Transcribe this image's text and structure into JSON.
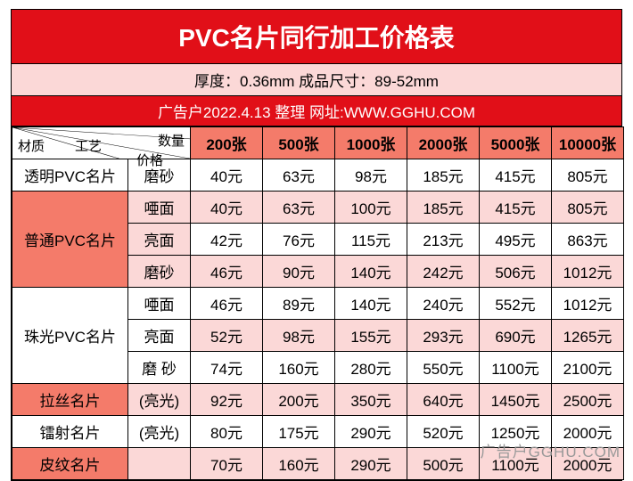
{
  "title": "PVC名片同行加工价格表",
  "spec": "厚度：0.36mm  成品尺寸：89-52mm",
  "info": "广告户2022.4.13 整理   网址:WWW.GGHU.COM",
  "diagLabels": {
    "qty": "数量",
    "price": "价格",
    "material": "材质",
    "tech": "工艺"
  },
  "qtyHeaders": [
    "200张",
    "500张",
    "1000张",
    "2000张",
    "5000张",
    "10000张"
  ],
  "rows": [
    {
      "material": "透明PVC名片",
      "matRowspan": 1,
      "matBg": "bg-white",
      "tech": "磨砂",
      "techBg": "bg-white",
      "valBg": "val-white",
      "values": [
        "40元",
        "63元",
        "98元",
        "185元",
        "415元",
        "805元"
      ]
    },
    {
      "material": "普通PVC名片",
      "matRowspan": 3,
      "matBg": "bg-dark",
      "tech": "唖面",
      "techBg": "bg-light",
      "valBg": "val-light",
      "values": [
        "40元",
        "63元",
        "100元",
        "185元",
        "415元",
        "805元"
      ]
    },
    {
      "material": "",
      "matRowspan": 0,
      "matBg": "",
      "tech": "亮面",
      "techBg": "bg-light",
      "valBg": "val-white",
      "values": [
        "42元",
        "76元",
        "115元",
        "213元",
        "495元",
        "863元"
      ]
    },
    {
      "material": "",
      "matRowspan": 0,
      "matBg": "",
      "tech": "磨砂",
      "techBg": "bg-light",
      "valBg": "val-light",
      "values": [
        "46元",
        "90元",
        "140元",
        "242元",
        "506元",
        "1012元"
      ]
    },
    {
      "material": "珠光PVC名片",
      "matRowspan": 3,
      "matBg": "bg-white",
      "tech": "唖面",
      "techBg": "bg-white",
      "valBg": "val-white",
      "values": [
        "46元",
        "89元",
        "140元",
        "240元",
        "552元",
        "1012元"
      ]
    },
    {
      "material": "",
      "matRowspan": 0,
      "matBg": "",
      "tech": "亮面",
      "techBg": "bg-white",
      "valBg": "val-light",
      "values": [
        "52元",
        "98元",
        "155元",
        "293元",
        "690元",
        "1265元"
      ]
    },
    {
      "material": "",
      "matRowspan": 0,
      "matBg": "",
      "tech": "磨 砂",
      "techBg": "bg-white",
      "valBg": "val-white",
      "values": [
        "74元",
        "160元",
        "280元",
        "550元",
        "1100元",
        "2100元"
      ]
    },
    {
      "material": "拉丝名片",
      "matRowspan": 1,
      "matBg": "bg-dark",
      "tech": "(亮光)",
      "techBg": "bg-light",
      "valBg": "val-light",
      "values": [
        "92元",
        "200元",
        "350元",
        "640元",
        "1450元",
        "2500元"
      ]
    },
    {
      "material": "镭射名片",
      "matRowspan": 1,
      "matBg": "bg-white",
      "tech": "(亮光)",
      "techBg": "bg-white",
      "valBg": "val-white",
      "values": [
        "80元",
        "175元",
        "290元",
        "520元",
        "1250元",
        "2000元"
      ]
    },
    {
      "material": "皮纹名片",
      "matRowspan": 1,
      "matBg": "bg-dark",
      "tech": "",
      "techBg": "bg-light",
      "valBg": "val-light",
      "values": [
        "70元",
        "160元",
        "290元",
        "500元",
        "1100元",
        "2000元"
      ]
    }
  ],
  "watermark": "广告户GGHU.COM",
  "colors": {
    "brandRed": "#e10f18",
    "salmon": "#f47b6a",
    "pink": "#fbd8d7",
    "white": "#ffffff",
    "border": "#000000"
  }
}
